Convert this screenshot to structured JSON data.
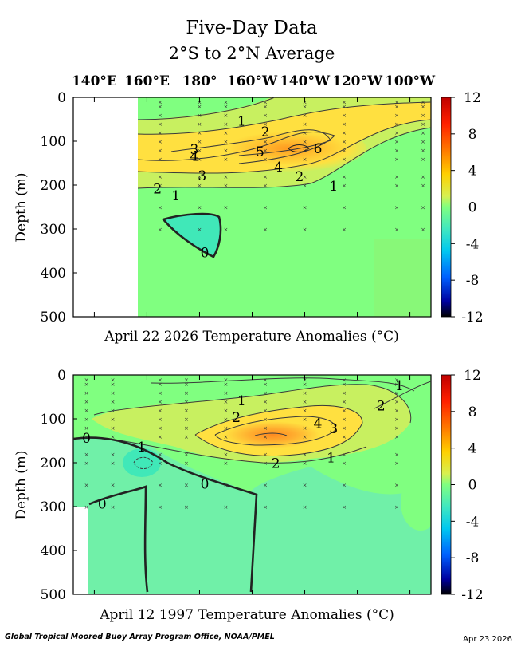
{
  "figure": {
    "title": "Five-Day Data",
    "subtitle": "2°S to 2°N Average",
    "footer_left": "Global Tropical Moored Buoy Array Program Office, NOAA/PMEL",
    "footer_right": "Apr 23 2026"
  },
  "colors": {
    "background_anomaly_0": "#80ff80",
    "neutral_ocean": "#70f0a8",
    "negative_1": "#40e8b8",
    "warm_2": "#c8f060",
    "warm_4": "#ffe040",
    "warm_6": "#ffc030",
    "warm_8": "#ff9020",
    "contour": "#3a3a3a"
  },
  "chart_data": [
    {
      "type": "heatmap",
      "name": "top",
      "xlabel": "April 22 2026 Temperature Anomalies (°C)",
      "ylabel": "Depth (m)",
      "x_ticks": [
        "140°E",
        "160°E",
        "180°",
        "160°W",
        "140°W",
        "120°W",
        "100°W"
      ],
      "x_tick_lon": [
        140,
        160,
        180,
        200,
        220,
        240,
        260
      ],
      "xlim": [
        132,
        268
      ],
      "y_ticks": [
        0,
        100,
        200,
        300,
        400,
        500
      ],
      "ylim": [
        0,
        500
      ],
      "data_start_lon": 156,
      "contour_labels": [
        {
          "text": "1",
          "lon": 196,
          "depth": 55
        },
        {
          "text": "2",
          "lon": 205,
          "depth": 80
        },
        {
          "text": "3",
          "lon": 178,
          "depth": 120
        },
        {
          "text": "4",
          "lon": 178,
          "depth": 135
        },
        {
          "text": "5",
          "lon": 203,
          "depth": 125
        },
        {
          "text": "4",
          "lon": 210,
          "depth": 160
        },
        {
          "text": "3",
          "lon": 181,
          "depth": 180
        },
        {
          "text": "2",
          "lon": 164,
          "depth": 210
        },
        {
          "text": "1",
          "lon": 171,
          "depth": 225
        },
        {
          "text": "2",
          "lon": 218,
          "depth": 182
        },
        {
          "text": "1",
          "lon": 231,
          "depth": 204
        },
        {
          "text": "6",
          "lon": 225,
          "depth": 118
        },
        {
          "text": "0",
          "lon": 182,
          "depth": 355
        }
      ],
      "colorbar": {
        "ticks": [
          12,
          8,
          4,
          0,
          -4,
          -8,
          -12
        ]
      }
    },
    {
      "type": "heatmap",
      "name": "bottom",
      "xlabel": "April 12 1997 Temperature Anomalies (°C)",
      "ylabel": "Depth (m)",
      "xlim": [
        132,
        268
      ],
      "y_ticks": [
        0,
        100,
        200,
        300,
        400,
        500
      ],
      "ylim": [
        0,
        500
      ],
      "contour_labels": [
        {
          "text": "1",
          "lon": 196,
          "depth": 60
        },
        {
          "text": "2",
          "lon": 194,
          "depth": 98
        },
        {
          "text": "1",
          "lon": 158,
          "depth": 165
        },
        {
          "text": "0",
          "lon": 137,
          "depth": 145
        },
        {
          "text": "4",
          "lon": 225,
          "depth": 112
        },
        {
          "text": "3",
          "lon": 231,
          "depth": 124
        },
        {
          "text": "2",
          "lon": 249,
          "depth": 72
        },
        {
          "text": "1",
          "lon": 256,
          "depth": 25
        },
        {
          "text": "2",
          "lon": 209,
          "depth": 203
        },
        {
          "text": "1",
          "lon": 230,
          "depth": 190
        },
        {
          "text": "0",
          "lon": 182,
          "depth": 250
        },
        {
          "text": "0",
          "lon": 143,
          "depth": 295
        }
      ],
      "colorbar": {
        "ticks": [
          12,
          8,
          4,
          0,
          -4,
          -8,
          -12
        ]
      }
    }
  ]
}
